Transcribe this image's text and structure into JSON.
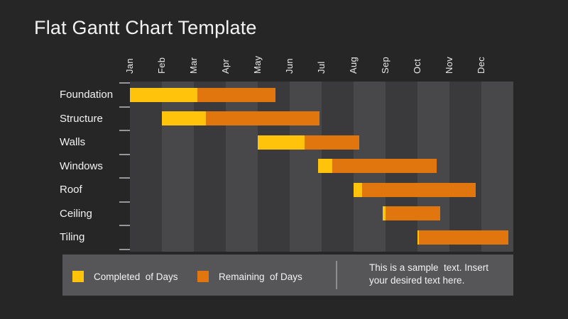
{
  "slide": {
    "title": "Flat Gantt Chart Template"
  },
  "chart_data": {
    "type": "bar",
    "subtype": "gantt",
    "orientation": "horizontal",
    "title": "Flat Gantt Chart Template",
    "categories": [
      "Foundation",
      "Structure",
      "Walls",
      "Windows",
      "Roof",
      "Ceiling",
      "Tiling"
    ],
    "x_tick_labels": [
      "Jan",
      "Feb",
      "Mar",
      "Apr",
      "May",
      "Jun",
      "Jul",
      "Aug",
      "Sep",
      "Oct",
      "Nov",
      "Dec"
    ],
    "x_range_months": [
      0,
      12
    ],
    "grid": "alternating-vertical-bands",
    "legend_position": "bottom",
    "series": [
      {
        "name": "Completed of Days",
        "color_key": "completed"
      },
      {
        "name": "Remaining of Days",
        "color_key": "remaining"
      }
    ],
    "tasks": [
      {
        "name": "Foundation",
        "start_month": 0.0,
        "completed_until": 2.11,
        "end_month": 4.56
      },
      {
        "name": "Structure",
        "start_month": 1.0,
        "completed_until": 2.38,
        "end_month": 5.93
      },
      {
        "name": "Walls",
        "start_month": 4.0,
        "completed_until": 5.47,
        "end_month": 7.18
      },
      {
        "name": "Windows",
        "start_month": 5.89,
        "completed_until": 6.33,
        "end_month": 9.6
      },
      {
        "name": "Roof",
        "start_month": 7.0,
        "completed_until": 7.27,
        "end_month": 10.82
      },
      {
        "name": "Ceiling",
        "start_month": 7.9,
        "completed_until": 8.0,
        "end_month": 9.71
      },
      {
        "name": "Tiling",
        "start_month": 9.0,
        "completed_until": 9.05,
        "end_month": 11.84
      }
    ]
  },
  "legend": {
    "completed_label": "Completed  of Days",
    "remaining_label": "Remaining  of Days"
  },
  "note": {
    "line1": "This is a sample  text. Insert",
    "line2": "your desired text here."
  },
  "colors": {
    "background": "#262626",
    "text": "#F2F2F2",
    "completed": "#FFC30B",
    "remaining": "#E2760E",
    "band_dark": "#3A3A3D",
    "band_light": "#48484B",
    "legend_bg": "#565658"
  }
}
